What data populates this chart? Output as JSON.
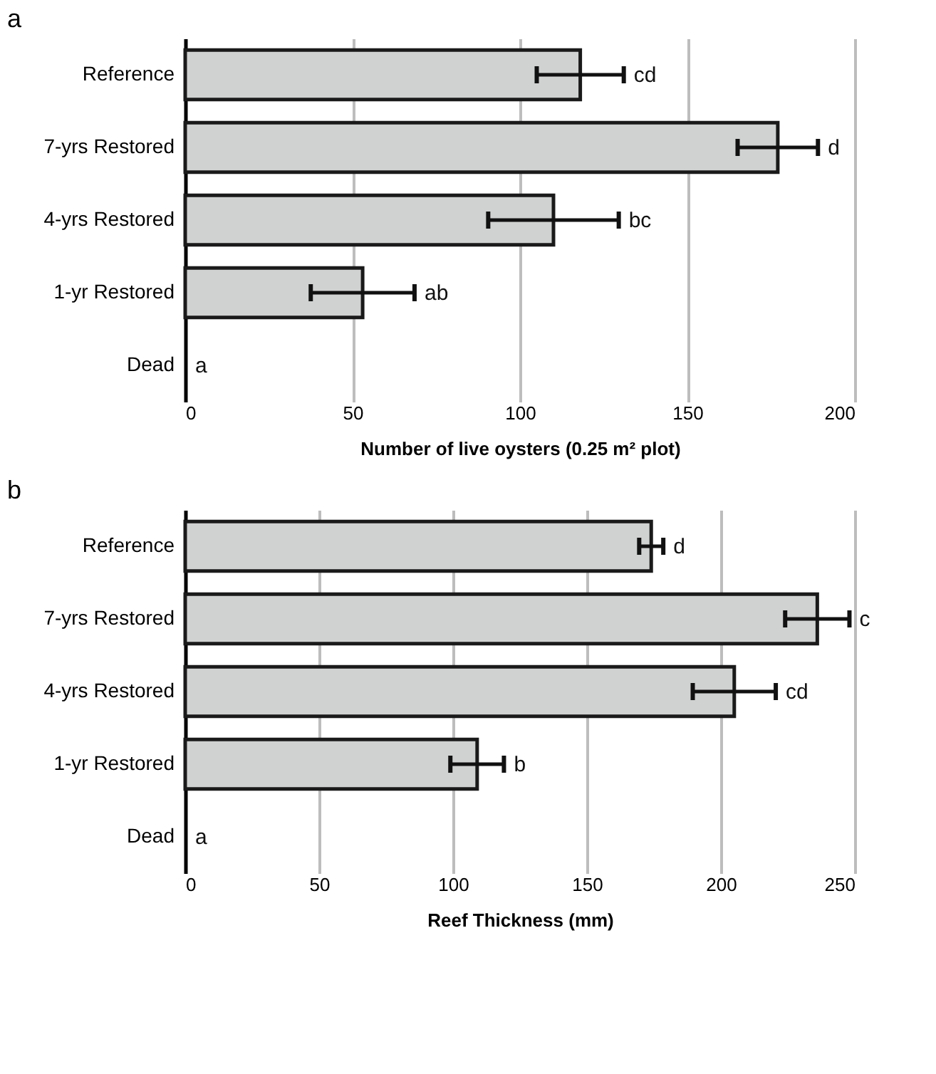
{
  "chart_data": [
    {
      "type": "bar",
      "orientation": "horizontal",
      "title": "a",
      "xlabel": "Number of live oysters (0.25 m² plot)",
      "categories": [
        "Reference",
        "7-yrs Restored",
        "4-yrs Restored",
        "1-yr Restored",
        "Dead"
      ],
      "values": [
        118,
        177,
        110,
        53,
        0
      ],
      "errors": [
        13,
        12,
        19.5,
        15.5,
        null
      ],
      "color": "#d0d2d1",
      "xlim": [
        0,
        200
      ],
      "xticks": [
        0,
        50,
        100,
        150,
        200
      ],
      "grid": "x",
      "annotations": [
        {
          "text": "cd",
          "x": 131,
          "y": "Reference"
        },
        {
          "text": "d",
          "x": 189,
          "y": "7-yrs Restored"
        },
        {
          "text": "bc",
          "x": 129.5,
          "y": "4-yrs Restored"
        },
        {
          "text": "ab",
          "x": 68.5,
          "y": "1-yr Restored"
        },
        {
          "text": "a",
          "x": 0,
          "y": "Dead"
        }
      ]
    },
    {
      "type": "bar",
      "orientation": "horizontal",
      "title": "b",
      "xlabel": "Reef Thickness (mm)",
      "categories": [
        "Reference",
        "7-yrs Restored",
        "4-yrs Restored",
        "1-yr Restored",
        "Dead"
      ],
      "values": [
        174,
        236,
        205,
        109,
        0
      ],
      "errors": [
        4.5,
        12,
        15.5,
        10,
        null
      ],
      "color": "#d0d2d1",
      "xlim": [
        0,
        250
      ],
      "xticks": [
        0,
        50,
        100,
        150,
        200,
        250
      ],
      "grid": "x",
      "annotations": [
        {
          "text": "d",
          "x": 178.5,
          "y": "Reference"
        },
        {
          "text": "c",
          "x": 248,
          "y": "7-yrs Restored"
        },
        {
          "text": "cd",
          "x": 220.5,
          "y": "4-yrs Restored"
        },
        {
          "text": "b",
          "x": 119,
          "y": "1-yr Restored"
        },
        {
          "text": "a",
          "x": 0,
          "y": "Dead"
        }
      ]
    }
  ]
}
